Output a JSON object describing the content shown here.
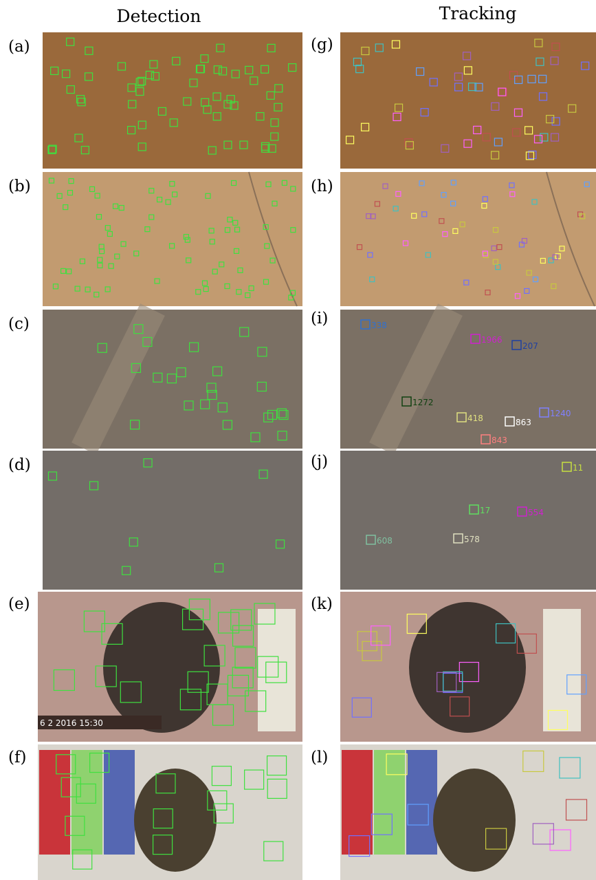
{
  "columns": [
    "Detection",
    "Tracking"
  ],
  "panels": [
    {
      "label": "(a)"
    },
    {
      "label": "(b)"
    },
    {
      "label": "(c)"
    },
    {
      "label": "(d)"
    },
    {
      "label": "(e)",
      "timestamp": "6  2 2016  15:30"
    },
    {
      "label": "(f)"
    },
    {
      "label": "(g)"
    },
    {
      "label": "(h)"
    },
    {
      "label": "(i)",
      "ids": [
        "338",
        "1966",
        "207",
        "1272",
        "418",
        "863",
        "1240",
        "843"
      ]
    },
    {
      "label": "(j)",
      "ids": [
        "11",
        "17",
        "554",
        "578",
        "608"
      ]
    },
    {
      "label": "(k)"
    },
    {
      "label": "(l)"
    }
  ]
}
